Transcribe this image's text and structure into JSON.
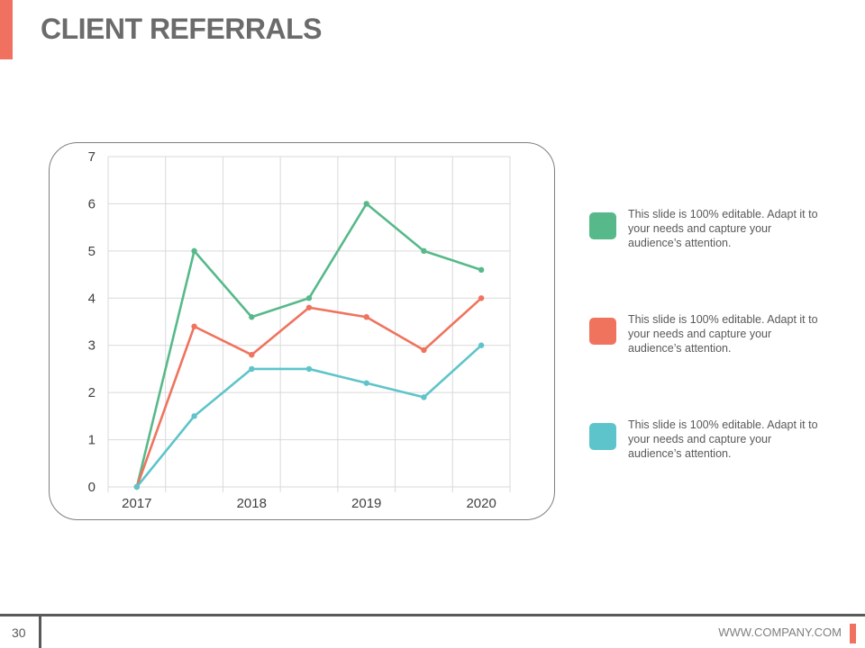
{
  "slide": {
    "title": "CLIENT REFERRALS",
    "page_number": "30",
    "footer_url": "WWW.COMPANY.COM",
    "accent_color": "#f07160"
  },
  "legend": [
    {
      "text": "This slide is 100% editable. Adapt it to your needs and capture your audience’s attention.",
      "color": "#57b98a"
    },
    {
      "text": "This slide is 100% editable. Adapt it to your needs and capture your audience’s attention.",
      "color": "#ef735d"
    },
    {
      "text": "This slide is 100% editable. Adapt it to your needs and capture your audience’s attention.",
      "color": "#5ec4cb"
    }
  ],
  "chart_data": {
    "type": "line",
    "x": [
      0,
      1,
      2,
      3,
      4,
      5,
      6
    ],
    "x_tick_labels": [
      {
        "at": 0,
        "label": "2017"
      },
      {
        "at": 2,
        "label": "2018"
      },
      {
        "at": 4,
        "label": "2019"
      },
      {
        "at": 6,
        "label": "2020"
      }
    ],
    "ylim": [
      0,
      7
    ],
    "y_ticks": [
      0,
      1,
      2,
      3,
      4,
      5,
      6,
      7
    ],
    "grid": true,
    "legend_position": "right",
    "series": [
      {
        "values": [
          0,
          5,
          3.6,
          4,
          6,
          5,
          4.6
        ],
        "color": "#57b98a"
      },
      {
        "values": [
          0,
          3.4,
          2.8,
          3.8,
          3.6,
          2.9,
          4
        ],
        "color": "#ef735d"
      },
      {
        "values": [
          0,
          1.5,
          2.5,
          2.5,
          2.2,
          1.9,
          3
        ],
        "color": "#5ec4cb"
      }
    ]
  }
}
